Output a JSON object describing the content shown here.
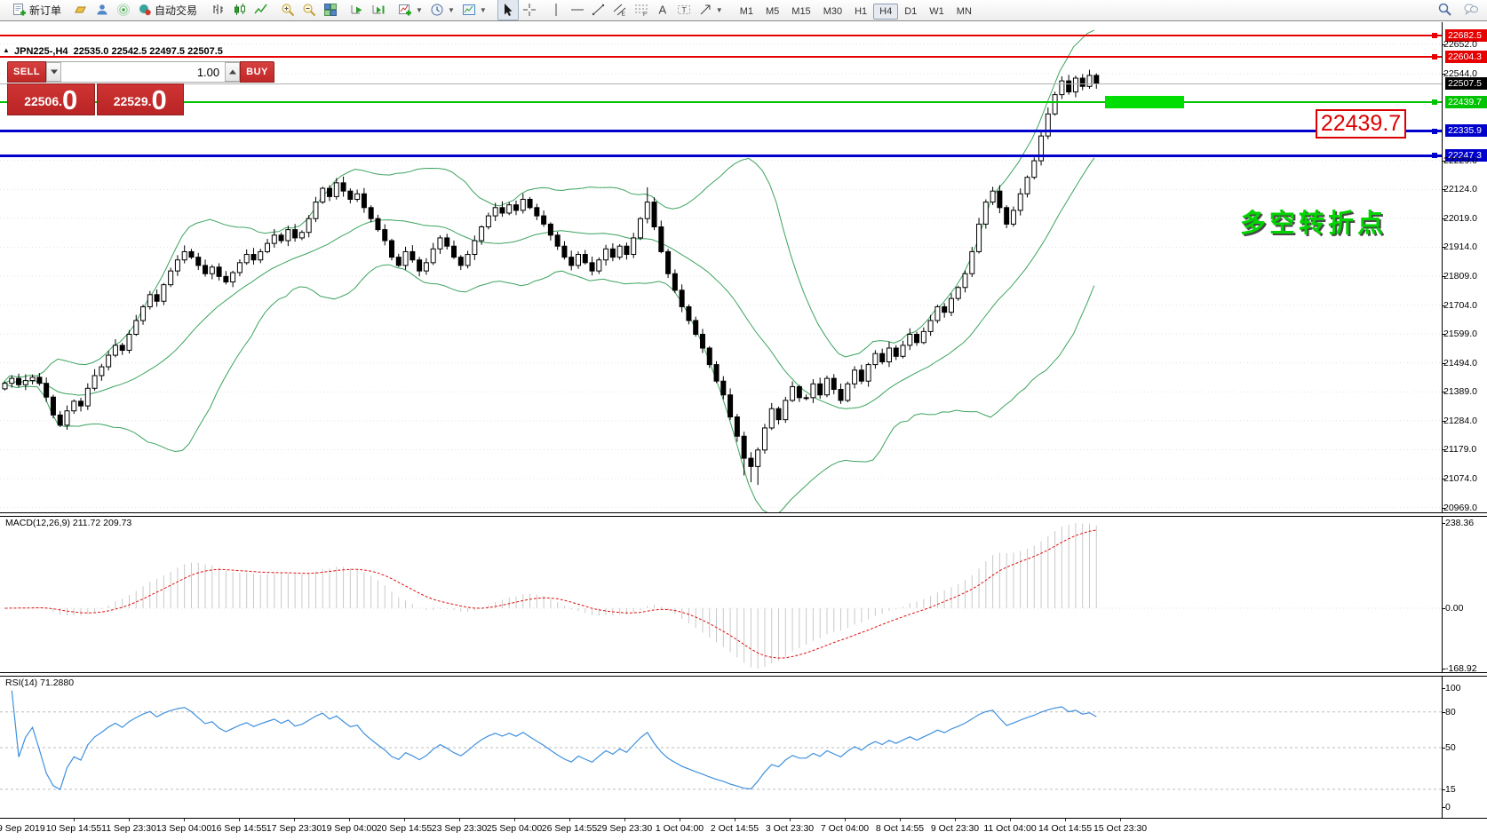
{
  "ui": {
    "toolbar": {
      "items": [
        {
          "grip": true
        },
        {
          "n": "new-order",
          "label": "新订单"
        },
        {
          "sep": true
        },
        {
          "n": "gold"
        },
        {
          "n": "account"
        },
        {
          "n": "signal"
        },
        {
          "n": "autotrade",
          "label": "自动交易"
        },
        {
          "grip": true
        },
        {
          "n": "bars-chart"
        },
        {
          "n": "candles-chart"
        },
        {
          "n": "line-chart"
        },
        {
          "sep": true
        },
        {
          "n": "zoom-in"
        },
        {
          "n": "zoom-out"
        },
        {
          "n": "tile-windows"
        },
        {
          "sep": true
        },
        {
          "n": "autoscroll"
        },
        {
          "n": "chart-shift"
        },
        {
          "sep": true
        },
        {
          "n": "indicators",
          "caret": true
        },
        {
          "n": "periods",
          "caret": true
        },
        {
          "n": "templates",
          "caret": true
        },
        {
          "grip": true
        },
        {
          "n": "cursor",
          "active": true
        },
        {
          "n": "crosshair"
        },
        {
          "sep": true
        },
        {
          "n": "vline"
        },
        {
          "n": "hline"
        },
        {
          "n": "trendline"
        },
        {
          "n": "channel"
        },
        {
          "n": "fibo"
        },
        {
          "n": "text-tool"
        },
        {
          "n": "label-tool"
        },
        {
          "n": "shapes",
          "caret": true
        },
        {
          "grip": true
        }
      ],
      "timeframes": [
        "M1",
        "M5",
        "M15",
        "M30",
        "H1",
        "H4",
        "D1",
        "W1",
        "MN"
      ],
      "active_timeframe": "H4",
      "right_icons": [
        "search",
        "chat"
      ]
    },
    "trade_panel": {
      "sell_label": "SELL",
      "buy_label": "BUY",
      "volume": "1.00",
      "sell_price_int": "22506",
      "sell_price_frac": "0",
      "buy_price_int": "22529",
      "buy_price_frac": "0"
    },
    "annotation_price_box": "22439.7",
    "annotation_text": "多空转折点"
  },
  "chart_data": [
    {
      "type": "candlestick",
      "symbol": "JPN225-",
      "timeframe": "H4",
      "symbol_ohlc_line": "JPN225-,H4  22535.0 22542.5 22497.5 22507.5",
      "last_price": "22507.5",
      "first_open": 21400,
      "closes": [
        21420,
        21438,
        21415,
        21430,
        21442,
        21420,
        21370,
        21305,
        21268,
        21320,
        21355,
        21338,
        21402,
        21448,
        21480,
        21522,
        21558,
        21540,
        21598,
        21648,
        21698,
        21742,
        21718,
        21778,
        21828,
        21868,
        21898,
        21878,
        21848,
        21818,
        21842,
        21808,
        21788,
        21822,
        21858,
        21888,
        21868,
        21898,
        21928,
        21958,
        21938,
        21978,
        21948,
        21968,
        22018,
        22078,
        22128,
        22098,
        22148,
        22118,
        22088,
        22108,
        22058,
        22018,
        21978,
        21938,
        21878,
        21848,
        21898,
        21868,
        21828,
        21858,
        21908,
        21948,
        21918,
        21878,
        21848,
        21888,
        21938,
        21988,
        22028,
        22058,
        22038,
        22068,
        22048,
        22088,
        22058,
        22028,
        21998,
        21958,
        21918,
        21878,
        21848,
        21888,
        21858,
        21828,
        21868,
        21908,
        21878,
        21918,
        21888,
        21948,
        22018,
        22078,
        21988,
        21898,
        21818,
        21758,
        21698,
        21648,
        21598,
        21548,
        21488,
        21428,
        21378,
        21298,
        21228,
        21148,
        21118,
        21178,
        21258,
        21328,
        21288,
        21358,
        21408,
        21368,
        21368,
        21418,
        21378,
        21438,
        21398,
        21358,
        21418,
        21468,
        21428,
        21488,
        21528,
        21498,
        21548,
        21518,
        21558,
        21598,
        21568,
        21608,
        21648,
        21698,
        21678,
        21728,
        21768,
        21818,
        21898,
        21998,
        22078,
        22118,
        22058,
        21998,
        22048,
        22108,
        22168,
        22228,
        22318,
        22398,
        22468,
        22518,
        22478,
        22528,
        22498,
        22538,
        22507.5
      ],
      "bollinger": {
        "period": 20,
        "deviation": 2
      },
      "y_tick_labels": [
        "22652.0",
        "22544.0",
        "22229.0",
        "22124.0",
        "22019.0",
        "21914.0",
        "21809.0",
        "21704.0",
        "21599.0",
        "21494.0",
        "21389.0",
        "21284.0",
        "21179.0",
        "21074.0",
        "20969.0"
      ],
      "x_labels": [
        "9 Sep 2019",
        "10 Sep 14:55",
        "11 Sep 23:30",
        "13 Sep 04:00",
        "16 Sep 14:55",
        "17 Sep 23:30",
        "19 Sep 04:00",
        "20 Sep 14:55",
        "23 Sep 23:30",
        "25 Sep 04:00",
        "26 Sep 14:55",
        "29 Sep 23:30",
        "1 Oct 04:00",
        "2 Oct 14:55",
        "3 Oct 23:30",
        "7 Oct 04:00",
        "8 Oct 14:55",
        "9 Oct 23:30",
        "11 Oct 04:00",
        "14 Oct 14:55",
        "15 Oct 23:30"
      ],
      "horizontal_lines": [
        {
          "price": 22682.5,
          "label": "22682.5",
          "color": "#e60000",
          "width": 2
        },
        {
          "price": 22604.3,
          "label": "22604.3",
          "color": "#e60000",
          "width": 2
        },
        {
          "price": 22507.5,
          "label": "22507.5",
          "color": "#b0b0b0",
          "label_bg": "#000000",
          "width": 1,
          "role": "current-price"
        },
        {
          "price": 22439.7,
          "label": "22439.7",
          "color": "#00c400",
          "width": 2,
          "highlight_rect": true
        },
        {
          "price": 22335.9,
          "label": "22335.9",
          "color": "#0000cc",
          "width": 3
        },
        {
          "price": 22247.3,
          "label": "22247.3",
          "color": "#0000cc",
          "width": 3
        }
      ]
    },
    {
      "type": "macd-histogram",
      "label": "MACD(12,26,9)",
      "value_main": "211.72",
      "value_signal": "209.73",
      "params": {
        "fast": 12,
        "slow": 26,
        "signal": 9
      },
      "scale": {
        "max": "238.36",
        "zero": "0.00",
        "min": "-168.92"
      }
    },
    {
      "type": "rsi-line",
      "label": "RSI(14)",
      "value": "71.2880",
      "period": 14,
      "scale_labels": [
        "100",
        "80",
        "50",
        "15",
        "0"
      ],
      "level_lines": [
        80,
        50,
        15
      ]
    }
  ]
}
